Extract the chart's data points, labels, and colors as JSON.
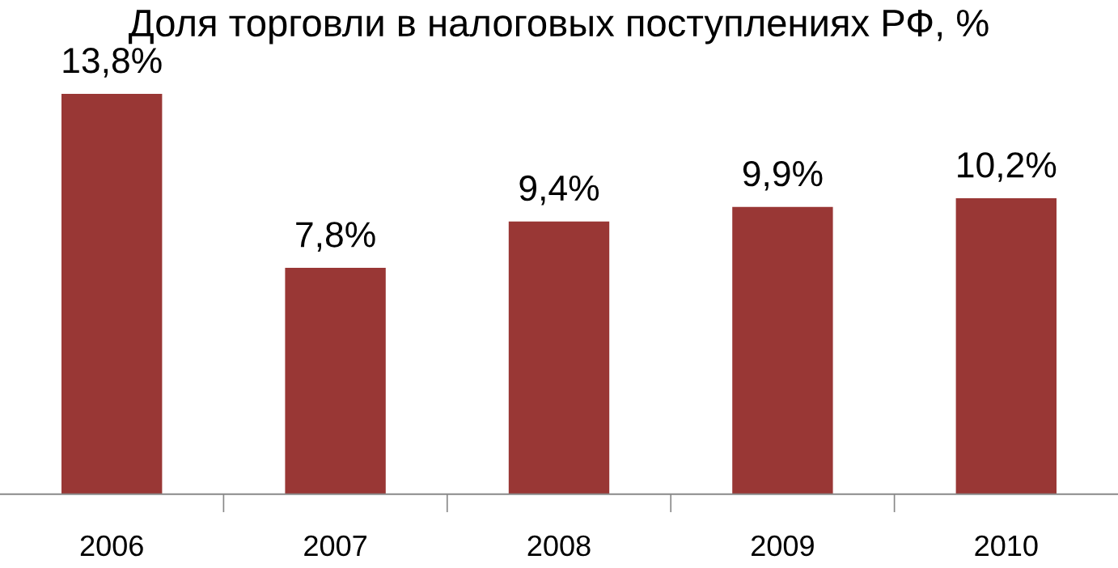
{
  "chart_data": {
    "type": "bar",
    "title": "Доля торговли в налоговых поступлениях РФ, %",
    "categories": [
      "2006",
      "2007",
      "2008",
      "2009",
      "2010"
    ],
    "values": [
      13.8,
      7.8,
      9.4,
      9.9,
      10.2
    ],
    "value_labels": [
      "13,8%",
      "7,8%",
      "9,4%",
      "9,9%",
      "10,2%"
    ],
    "color": "#993735",
    "grid": false,
    "legend": false
  }
}
